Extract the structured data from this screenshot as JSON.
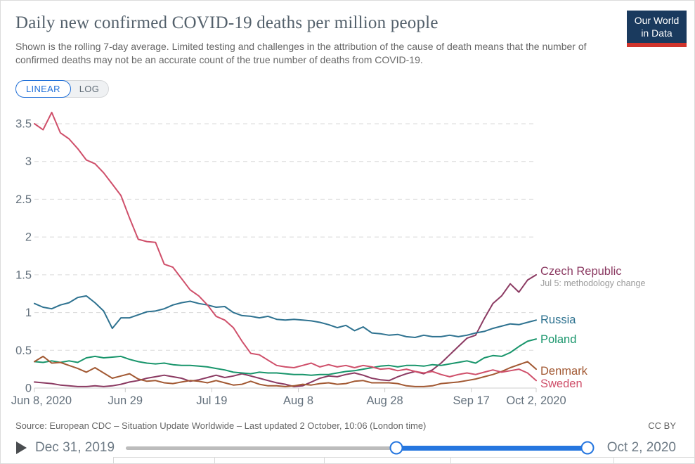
{
  "header": {
    "title": "Daily new confirmed COVID-19 deaths per million people",
    "subtitle": "Shown is the rolling 7-day average. Limited testing and challenges in the attribution of the cause of death means that the number of confirmed deaths may not be an accurate count of the true number of deaths from COVID-19.",
    "logo": {
      "line1": "Our World",
      "line2": "in Data",
      "bg": "#1A3A5E",
      "accent": "#D0342C"
    }
  },
  "controls": {
    "linear_label": "LINEAR",
    "log_label": "LOG",
    "active_scale": "LINEAR",
    "accent": "#2271D9"
  },
  "chart_data": {
    "type": "line",
    "title": "Daily new confirmed COVID-19 deaths per million people",
    "xlabel": "",
    "ylabel": "",
    "ylim": [
      0,
      3.72
    ],
    "grid": "horizontal-dashed",
    "legend_position": "right-end-labels",
    "x_start_date": "Jun 8, 2020",
    "x_end_date": "Oct 2, 2020",
    "total_days": 116,
    "sample_interval_days": 2,
    "x_ticks": [
      {
        "label": "Jun 8, 2020",
        "day": 0
      },
      {
        "label": "Jun 29",
        "day": 21
      },
      {
        "label": "Jul 19",
        "day": 41
      },
      {
        "label": "Aug 8",
        "day": 61
      },
      {
        "label": "Aug 28",
        "day": 81
      },
      {
        "label": "Sep 17",
        "day": 101
      },
      {
        "label": "Oct 2, 2020",
        "day": 116
      }
    ],
    "y_ticks": [
      0,
      0.5,
      1,
      1.5,
      2,
      2.5,
      3,
      3.5
    ],
    "series": [
      {
        "name": "Czech Republic",
        "color": "#8B3A62",
        "annotation": "Jul 5: methodology change",
        "values": [
          0.08,
          0.07,
          0.06,
          0.04,
          0.03,
          0.02,
          0.02,
          0.03,
          0.02,
          0.03,
          0.05,
          0.08,
          0.1,
          0.13,
          0.15,
          0.17,
          0.15,
          0.13,
          0.09,
          0.11,
          0.14,
          0.17,
          0.14,
          0.16,
          0.19,
          0.16,
          0.13,
          0.1,
          0.07,
          0.05,
          0.02,
          0.03,
          0.08,
          0.13,
          0.16,
          0.15,
          0.18,
          0.2,
          0.17,
          0.13,
          0.11,
          0.1,
          0.15,
          0.19,
          0.22,
          0.19,
          0.24,
          0.33,
          0.44,
          0.55,
          0.66,
          0.7,
          0.92,
          1.12,
          1.22,
          1.38,
          1.27,
          1.43,
          1.5
        ]
      },
      {
        "name": "Russia",
        "color": "#2E7290",
        "annotation": "",
        "values": [
          1.12,
          1.07,
          1.05,
          1.1,
          1.13,
          1.2,
          1.22,
          1.13,
          1.02,
          0.79,
          0.93,
          0.93,
          0.97,
          1.01,
          1.02,
          1.05,
          1.1,
          1.13,
          1.15,
          1.12,
          1.1,
          1.07,
          1.08,
          1.0,
          0.96,
          0.95,
          0.93,
          0.95,
          0.91,
          0.9,
          0.91,
          0.9,
          0.89,
          0.87,
          0.84,
          0.8,
          0.83,
          0.76,
          0.81,
          0.73,
          0.72,
          0.7,
          0.71,
          0.68,
          0.67,
          0.7,
          0.68,
          0.68,
          0.7,
          0.68,
          0.7,
          0.73,
          0.75,
          0.79,
          0.82,
          0.85,
          0.84,
          0.87,
          0.9
        ]
      },
      {
        "name": "Poland",
        "color": "#18956B",
        "annotation": "",
        "values": [
          0.35,
          0.34,
          0.36,
          0.34,
          0.36,
          0.34,
          0.4,
          0.42,
          0.4,
          0.41,
          0.42,
          0.38,
          0.35,
          0.33,
          0.32,
          0.33,
          0.31,
          0.3,
          0.3,
          0.29,
          0.28,
          0.26,
          0.24,
          0.21,
          0.2,
          0.19,
          0.21,
          0.2,
          0.2,
          0.19,
          0.18,
          0.18,
          0.17,
          0.18,
          0.18,
          0.2,
          0.22,
          0.23,
          0.25,
          0.27,
          0.29,
          0.3,
          0.28,
          0.3,
          0.3,
          0.29,
          0.31,
          0.3,
          0.32,
          0.34,
          0.36,
          0.33,
          0.4,
          0.43,
          0.42,
          0.47,
          0.55,
          0.62,
          0.65
        ]
      },
      {
        "name": "Denmark",
        "color": "#A25933",
        "annotation": "",
        "values": [
          0.35,
          0.42,
          0.33,
          0.34,
          0.3,
          0.26,
          0.21,
          0.27,
          0.2,
          0.13,
          0.16,
          0.19,
          0.12,
          0.09,
          0.1,
          0.07,
          0.06,
          0.08,
          0.1,
          0.09,
          0.07,
          0.1,
          0.07,
          0.04,
          0.05,
          0.09,
          0.05,
          0.03,
          0.03,
          0.02,
          0.03,
          0.05,
          0.04,
          0.06,
          0.07,
          0.05,
          0.06,
          0.09,
          0.1,
          0.07,
          0.07,
          0.07,
          0.06,
          0.03,
          0.02,
          0.02,
          0.03,
          0.06,
          0.07,
          0.08,
          0.1,
          0.12,
          0.15,
          0.18,
          0.22,
          0.27,
          0.31,
          0.35,
          0.25
        ]
      },
      {
        "name": "Sweden",
        "color": "#CF4F6A",
        "annotation": "",
        "values": [
          3.5,
          3.42,
          3.65,
          3.38,
          3.3,
          3.17,
          3.02,
          2.97,
          2.85,
          2.7,
          2.55,
          2.25,
          1.97,
          1.94,
          1.93,
          1.64,
          1.6,
          1.45,
          1.3,
          1.22,
          1.1,
          0.95,
          0.9,
          0.8,
          0.62,
          0.46,
          0.44,
          0.37,
          0.3,
          0.28,
          0.27,
          0.3,
          0.33,
          0.28,
          0.31,
          0.28,
          0.3,
          0.27,
          0.3,
          0.28,
          0.25,
          0.26,
          0.23,
          0.25,
          0.22,
          0.2,
          0.22,
          0.18,
          0.15,
          0.18,
          0.2,
          0.18,
          0.21,
          0.24,
          0.21,
          0.23,
          0.25,
          0.2,
          0.1
        ]
      }
    ]
  },
  "footer": {
    "source": "Source: European CDC – Situation Update Worldwide – Last updated 2 October, 10:06 (London time)",
    "license": "CC BY"
  },
  "timeline": {
    "start_label": "Dec 31, 2019",
    "end_label": "Oct 2, 2020",
    "selected_start": "Jun 8, 2020",
    "selected_end": "Oct 2, 2020",
    "range_start_pct": 57.5,
    "range_end_pct": 98.5
  }
}
